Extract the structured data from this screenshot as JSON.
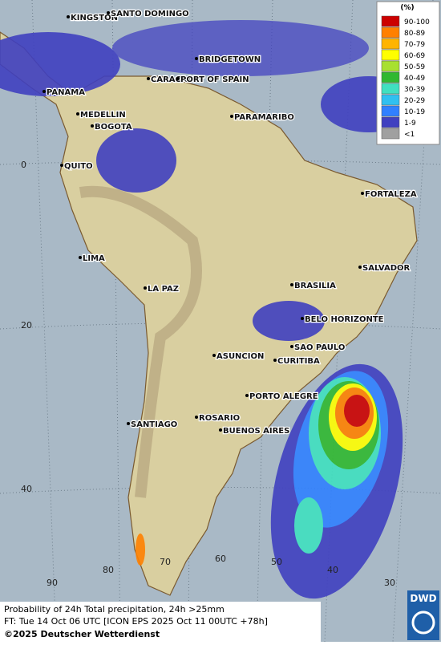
{
  "legend": {
    "title": "(%)",
    "items": [
      {
        "label": "90-100",
        "color": "#cc0000"
      },
      {
        "label": "80-89",
        "color": "#ff8000"
      },
      {
        "label": "70-79",
        "color": "#ffb400"
      },
      {
        "label": "60-69",
        "color": "#ffff00"
      },
      {
        "label": "50-59",
        "color": "#a8e030"
      },
      {
        "label": "40-49",
        "color": "#30b830"
      },
      {
        "label": "30-39",
        "color": "#40e0c0"
      },
      {
        "label": "20-29",
        "color": "#30c0f0"
      },
      {
        "label": "10-19",
        "color": "#3080ff"
      },
      {
        "label": "1-9",
        "color": "#4040c0"
      },
      {
        "label": "<1",
        "color": "#a0a0a0"
      }
    ]
  },
  "cities": [
    "KINGSTON",
    "SANTO DOMINGO",
    "BRIDGETOWN",
    "CARACAS",
    "PORT OF SPAIN",
    "PANAMA",
    "MEDELLIN",
    "BOGOTA",
    "PARAMARIBO",
    "QUITO",
    "FORTALEZA",
    "LIMA",
    "SALVADOR",
    "LA PAZ",
    "BRASILIA",
    "BELO HORIZONTE",
    "SAO PAULO",
    "ASUNCION",
    "CURITIBA",
    "PORTO ALEGRE",
    "ROSARIO",
    "BUENOS AIRES",
    "SANTIAGO"
  ],
  "grid_labels": {
    "lat": [
      0,
      20,
      40
    ],
    "lon": [
      90,
      80,
      70,
      60,
      50,
      40,
      30
    ]
  },
  "footer": {
    "line1": "Probability of 24h Total precipitation, 24h >25mm",
    "line2": "FT: Tue 14 Oct 06 UTC [ICON EPS 2025 Oct 11 00UTC +78h]",
    "copyright": "©2025 Deutscher Wetterdienst"
  },
  "logo": "DWD"
}
